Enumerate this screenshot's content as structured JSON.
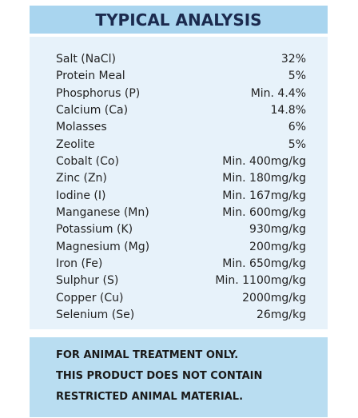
{
  "header": {
    "title": "TYPICAL ANALYSIS"
  },
  "table": {
    "rows": [
      [
        "Salt (NaCl)",
        "32%"
      ],
      [
        "Protein Meal",
        "5%"
      ],
      [
        "Phosphorus (P)",
        "Min. 4.4%"
      ],
      [
        "Calcium (Ca)",
        "14.8%"
      ],
      [
        "Molasses",
        "6%"
      ],
      [
        "Zeolite",
        "5%"
      ],
      [
        "Cobalt (Co)",
        "Min. 400mg/kg"
      ],
      [
        "Zinc (Zn)",
        "Min. 180mg/kg"
      ],
      [
        "Iodine (I)",
        "Min. 167mg/kg"
      ],
      [
        "Manganese (Mn)",
        "Min. 600mg/kg"
      ],
      [
        "Potassium (K)",
        "930mg/kg"
      ],
      [
        "Magnesium (Mg)",
        "200mg/kg"
      ],
      [
        "Iron (Fe)",
        "Min. 650mg/kg"
      ],
      [
        "Sulphur (S)",
        "Min. 1100mg/kg"
      ],
      [
        "Copper (Cu)",
        "2000mg/kg"
      ],
      [
        "Selenium (Se)",
        "26mg/kg"
      ]
    ]
  },
  "footer": {
    "lines": [
      "FOR ANIMAL TREATMENT ONLY.",
      "THIS PRODUCT DOES NOT CONTAIN",
      "RESTRICTED ANIMAL MATERIAL."
    ]
  }
}
